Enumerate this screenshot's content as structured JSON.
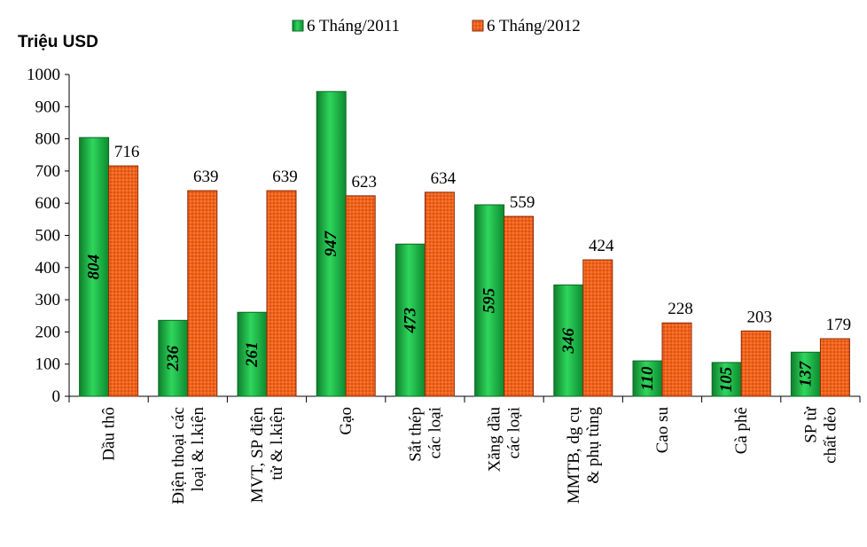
{
  "chart_data": {
    "type": "bar",
    "ylabel": "Triệu USD",
    "ylim": [
      0,
      1000
    ],
    "yticks": [
      0,
      100,
      200,
      300,
      400,
      500,
      600,
      700,
      800,
      900,
      1000
    ],
    "categories": [
      [
        "Dầu thô"
      ],
      [
        "Điện thoại các",
        "loại & l.kiện"
      ],
      [
        "MVT, SP điện",
        "tử & l.kiện"
      ],
      [
        "Gạo"
      ],
      [
        "Sắt thép",
        "các loại"
      ],
      [
        "Xăng dầu",
        "các loại"
      ],
      [
        "MMTB, dg cụ",
        "& phụ tùng"
      ],
      [
        "Cao su"
      ],
      [
        "Cà phê"
      ],
      [
        "SP từ",
        "chất dẻo"
      ]
    ],
    "series": [
      {
        "name": "6 Tháng/2011",
        "color": "#1fb84a",
        "values": [
          804,
          236,
          261,
          947,
          473,
          595,
          346,
          110,
          105,
          137
        ]
      },
      {
        "name": "6 Tháng/2012",
        "color": "#f05a1a",
        "values": [
          716,
          639,
          639,
          623,
          634,
          559,
          424,
          228,
          203,
          179
        ]
      }
    ],
    "legend_position": "top",
    "grid": false
  }
}
